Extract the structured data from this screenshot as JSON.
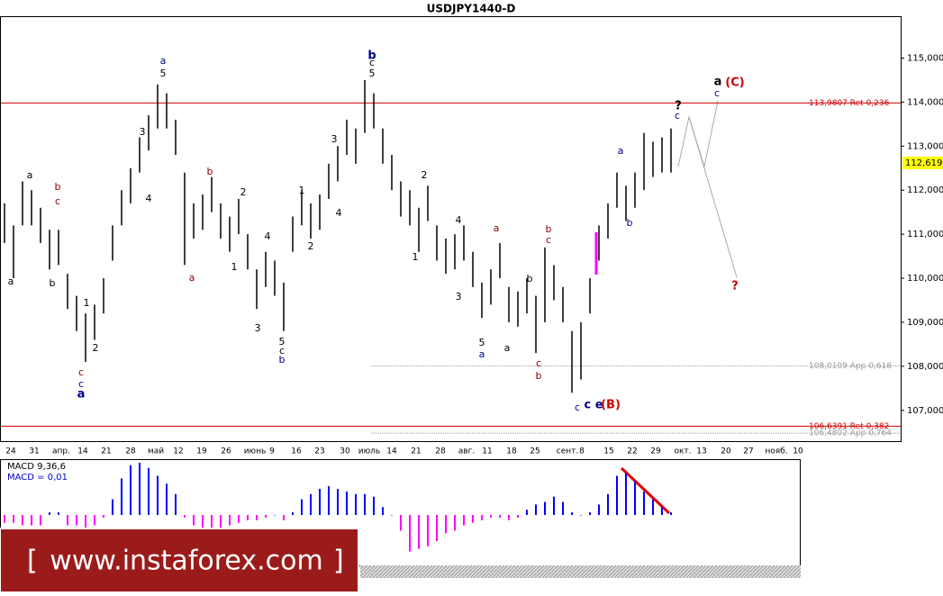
{
  "chart_data": {
    "type": "ohlc",
    "title": "USDJPY1440-D",
    "ylim": [
      106.3,
      115.95
    ],
    "yticks": [
      {
        "value": 115,
        "label": "115,000"
      },
      {
        "value": 114,
        "label": "114,000"
      },
      {
        "value": 113,
        "label": "113,000"
      },
      {
        "value": 112,
        "label": "112,000"
      },
      {
        "value": 111,
        "label": "111,000"
      },
      {
        "value": 110,
        "label": "110,000"
      },
      {
        "value": 109,
        "label": "109,000"
      },
      {
        "value": 108,
        "label": "108,000"
      },
      {
        "value": 107,
        "label": "107,000"
      }
    ],
    "current_price": {
      "value": 112.619,
      "label": "112,619",
      "color": "#ffff00"
    },
    "bar_color": "#000000",
    "high": [
      111.7,
      111.2,
      112.2,
      112.0,
      111.6,
      111.1,
      111.1,
      110.1,
      109.6,
      109.2,
      109.4,
      110.0,
      111.2,
      112.0,
      112.5,
      113.2,
      113.7,
      114.4,
      114.2,
      113.6,
      112.4,
      111.7,
      111.9,
      112.3,
      111.7,
      111.4,
      111.8,
      111.0,
      110.2,
      110.6,
      110.4,
      109.9,
      111.4,
      112.0,
      111.7,
      111.9,
      112.6,
      113.0,
      113.6,
      113.4,
      114.5,
      114.2,
      113.4,
      112.8,
      112.2,
      112.0,
      111.6,
      112.1,
      111.2,
      110.9,
      111.0,
      111.2,
      110.6,
      109.9,
      110.2,
      110.8,
      109.8,
      109.7,
      110.0,
      109.6,
      110.7,
      110.3,
      109.8,
      108.8,
      109.0,
      110.0,
      111.2,
      111.7,
      112.4,
      112.1,
      112.4,
      113.3,
      113.1,
      113.2,
      113.4
    ],
    "low": [
      110.8,
      110.0,
      111.2,
      111.2,
      110.8,
      110.2,
      110.3,
      109.3,
      108.8,
      108.1,
      108.6,
      109.2,
      110.4,
      111.2,
      111.7,
      112.4,
      112.9,
      113.4,
      113.4,
      112.8,
      110.3,
      110.9,
      111.1,
      111.5,
      110.9,
      110.6,
      111.0,
      110.2,
      109.3,
      109.8,
      109.6,
      108.8,
      110.6,
      111.2,
      110.9,
      111.1,
      111.8,
      112.2,
      112.8,
      112.6,
      113.3,
      113.4,
      112.6,
      112.0,
      111.4,
      111.2,
      110.6,
      111.3,
      110.4,
      110.1,
      110.2,
      110.4,
      109.8,
      109.1,
      109.4,
      110.0,
      109.0,
      108.9,
      109.2,
      108.3,
      109.0,
      109.5,
      109.0,
      107.4,
      107.7,
      109.2,
      110.4,
      110.9,
      111.6,
      111.3,
      111.6,
      112.0,
      112.3,
      112.4,
      112.4
    ],
    "x_labels": [
      "24",
      "31",
      "апр.",
      "14",
      "21",
      "28",
      "май",
      "12",
      "19",
      "26",
      "июнь",
      "9",
      "16",
      "23",
      "30",
      "июль",
      "14",
      "21",
      "28",
      "авг.",
      "11",
      "18",
      "25",
      "сент.",
      "8",
      "15",
      "22",
      "29",
      "окт.",
      "13",
      "20",
      "27",
      "нояб.",
      "10"
    ],
    "levels": [
      {
        "value": 113.9807,
        "label": "113,9807 Ret 0,236",
        "color": "#cc0000"
      },
      {
        "value": 108.0109,
        "label": "108,0109 App 0,618",
        "color": "#999999"
      },
      {
        "value": 106.6391,
        "label": "106,6391 Ret 0,382",
        "color": "#cc0000"
      },
      {
        "value": 106.4802,
        "label": "106,4802 App 0,764",
        "color": "#999999"
      }
    ],
    "annotations": [
      {
        "text": "a",
        "color": "#000000"
      },
      {
        "text": "a",
        "color": "#000000"
      },
      {
        "text": "b",
        "color": "#8b0000"
      },
      {
        "text": "c",
        "color": "#8b0000"
      },
      {
        "text": "b",
        "color": "#000000"
      },
      {
        "text": "1",
        "color": "#000000"
      },
      {
        "text": "2",
        "color": "#000000"
      },
      {
        "text": "c",
        "color": "#8b0000"
      },
      {
        "text": "c",
        "color": "#00008b"
      },
      {
        "text": "a",
        "color": "#00008b"
      },
      {
        "text": "3",
        "color": "#000000"
      },
      {
        "text": "4",
        "color": "#000000"
      },
      {
        "text": "5",
        "color": "#000000"
      },
      {
        "text": "a",
        "color": "#00008b"
      },
      {
        "text": "b",
        "color": "#8b0000"
      },
      {
        "text": "a",
        "color": "#8b0000"
      },
      {
        "text": "2",
        "color": "#000000"
      },
      {
        "text": "1",
        "color": "#000000"
      },
      {
        "text": "4",
        "color": "#000000"
      },
      {
        "text": "3",
        "color": "#000000"
      },
      {
        "text": "5",
        "color": "#000000"
      },
      {
        "text": "c",
        "color": "#000000"
      },
      {
        "text": "b",
        "color": "#00008b"
      },
      {
        "text": "1",
        "color": "#000000"
      },
      {
        "text": "2",
        "color": "#000000"
      },
      {
        "text": "3",
        "color": "#000000"
      },
      {
        "text": "4",
        "color": "#000000"
      },
      {
        "text": "5",
        "color": "#000000"
      },
      {
        "text": "c",
        "color": "#000000"
      },
      {
        "text": "b",
        "color": "#00008b"
      },
      {
        "text": "2",
        "color": "#000000"
      },
      {
        "text": "1",
        "color": "#000000"
      },
      {
        "text": "4",
        "color": "#000000"
      },
      {
        "text": "3",
        "color": "#000000"
      },
      {
        "text": "5",
        "color": "#000000"
      },
      {
        "text": "a",
        "color": "#00008b"
      },
      {
        "text": "a",
        "color": "#8b0000"
      },
      {
        "text": "a",
        "color": "#000000"
      },
      {
        "text": "b",
        "color": "#000000"
      },
      {
        "text": "b",
        "color": "#8b0000"
      },
      {
        "text": "c",
        "color": "#8b0000"
      },
      {
        "text": "c",
        "color": "#8b0000"
      },
      {
        "text": "b",
        "color": "#8b0000"
      },
      {
        "text": "c",
        "color": "#00008b"
      },
      {
        "text": "c e",
        "color": "#00008b"
      },
      {
        "text": "(B)",
        "color": "#cc0000"
      },
      {
        "text": "a",
        "color": "#00008b"
      },
      {
        "text": "b",
        "color": "#00008b"
      },
      {
        "text": "?",
        "color": "#000000"
      },
      {
        "text": "c",
        "color": "#00008b"
      },
      {
        "text": "a",
        "color": "#000000"
      },
      {
        "text": "(C)",
        "color": "#cc0000"
      },
      {
        "text": "c",
        "color": "#00008b"
      },
      {
        "text": "?",
        "color": "#cc0000"
      }
    ],
    "macd": {
      "label": "MACD 9,36,6",
      "value_label": "MACD = 0,01",
      "value_color": "#0000cc",
      "ylim": [
        -1,
        1
      ],
      "positive_color": "#0000ff",
      "negative_color": "#ff00ff",
      "values": [
        -0.15,
        -0.15,
        -0.2,
        -0.2,
        -0.2,
        0.05,
        0.05,
        -0.2,
        -0.2,
        -0.25,
        -0.2,
        -0.05,
        0.3,
        0.7,
        0.95,
        1.0,
        0.9,
        0.75,
        0.6,
        0.4,
        -0.05,
        -0.2,
        -0.3,
        -0.25,
        -0.25,
        -0.2,
        -0.15,
        -0.1,
        -0.1,
        -0.05,
        0.0,
        -0.1,
        0.05,
        0.3,
        0.4,
        0.5,
        0.55,
        0.5,
        0.45,
        0.4,
        0.4,
        0.35,
        0.15,
        0.0,
        -0.3,
        -0.7,
        -0.65,
        -0.6,
        -0.5,
        -0.35,
        -0.3,
        -0.2,
        -0.15,
        -0.1,
        -0.05,
        -0.05,
        -0.1,
        -0.05,
        0.1,
        0.2,
        0.25,
        0.35,
        0.25,
        0.05,
        0.0,
        0.05,
        0.2,
        0.4,
        0.75,
        0.8,
        0.65,
        0.45,
        0.3,
        0.15,
        0.05
      ]
    },
    "watermark": {
      "open": "[",
      "text": "www.instaforex.com",
      "close": "]"
    }
  }
}
